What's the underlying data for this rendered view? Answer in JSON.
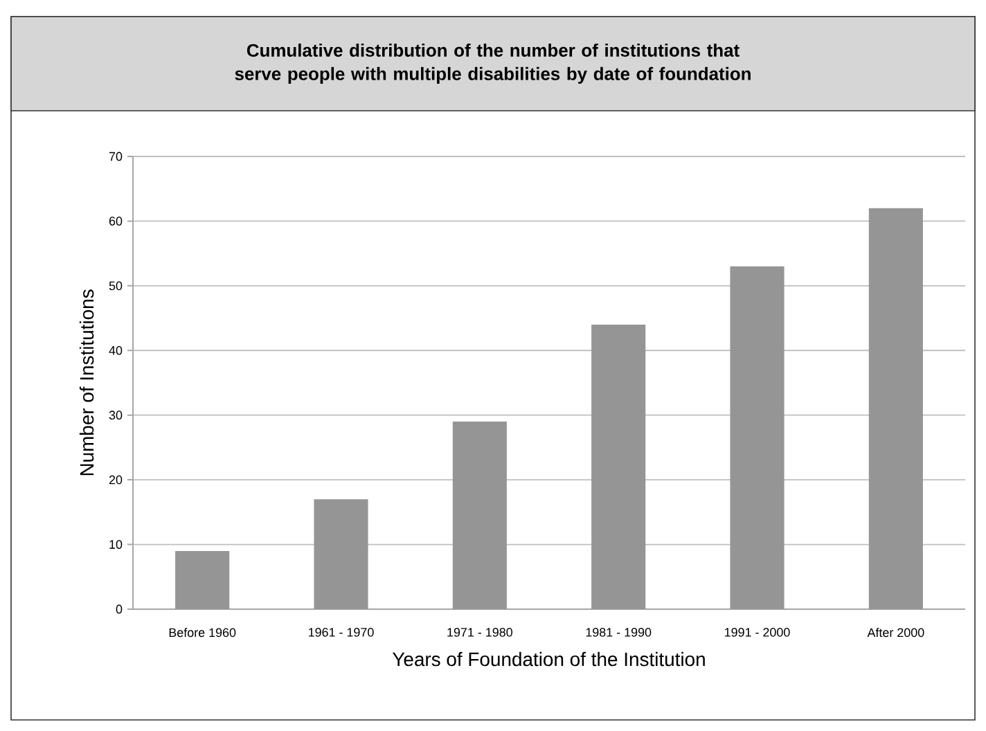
{
  "chart_data": {
    "type": "bar",
    "title": "Cumulative distribution of the number of institutions that serve people with multiple disabilities by date of foundation",
    "xlabel": "Years of Foundation of the Institution",
    "ylabel": "Number of Institutions",
    "categories": [
      "Before 1960",
      "1961 - 1970",
      "1971 - 1980",
      "1981 - 1990",
      "1991 - 2000",
      "After 2000"
    ],
    "values": [
      9,
      17,
      29,
      44,
      53,
      62
    ],
    "color": "#959595",
    "ylim": [
      0,
      70
    ],
    "yticks": [
      0,
      10,
      20,
      30,
      40,
      50,
      60,
      70
    ],
    "grid": "y"
  }
}
